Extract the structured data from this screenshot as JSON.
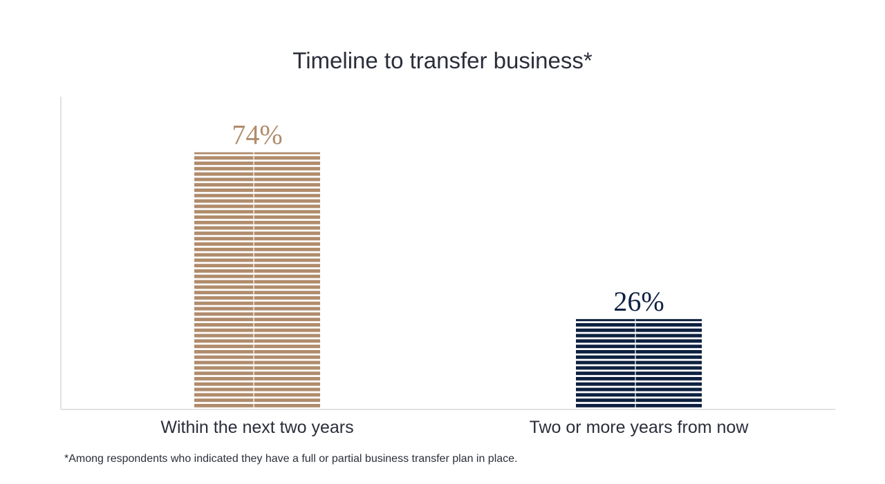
{
  "chart_data": {
    "type": "bar",
    "title": "Timeline to transfer business*",
    "categories": [
      "Within the next two years",
      "Two or more years from now"
    ],
    "values": [
      74,
      26
    ],
    "value_labels": [
      "74%",
      "26%"
    ],
    "colors": [
      "#b08c6c",
      "#0e2140"
    ],
    "ylim": [
      0,
      90
    ],
    "grid": false
  },
  "footnote": "*Among respondents who indicated they have a full or partial business transfer plan in place."
}
